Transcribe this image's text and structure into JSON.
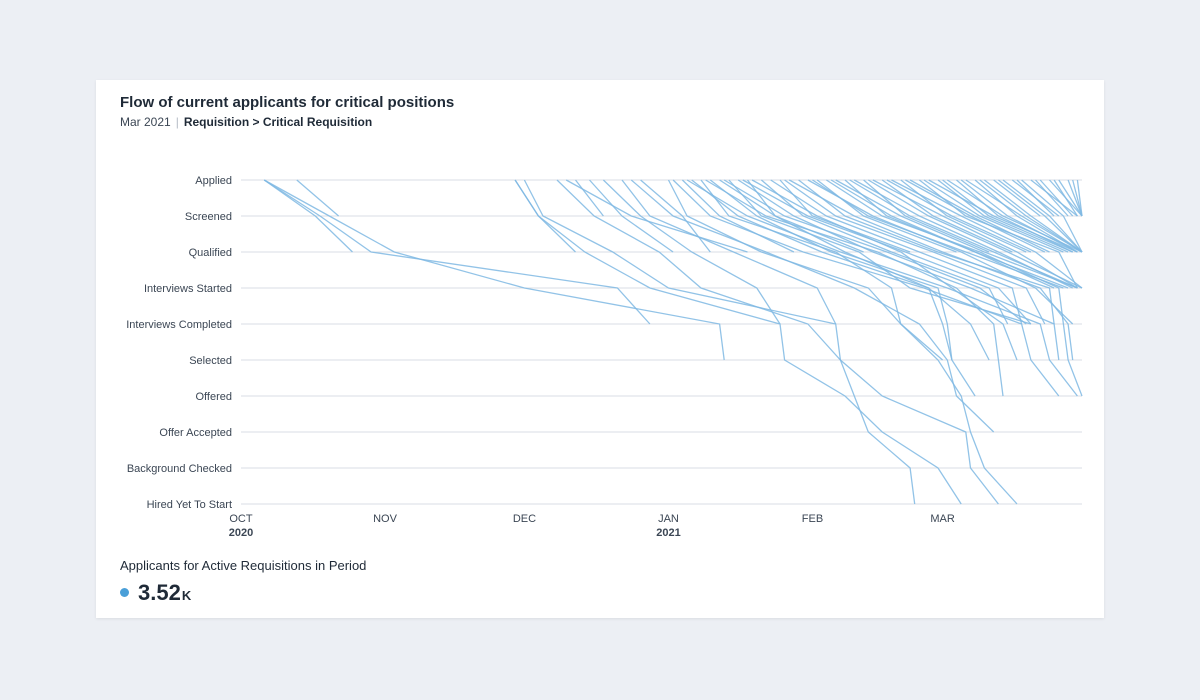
{
  "card": {
    "title": "Flow of current applicants for critical positions",
    "period": "Mar 2021",
    "breadcrumb": "Requisition > Critical Requisition"
  },
  "metric": {
    "label": "Applicants for Active Requisitions in Period",
    "value": "3.52",
    "suffix": "K",
    "dot_color": "#4a9fd8"
  },
  "colors": {
    "line": "#7fb9e3",
    "grid": "#d9dee5",
    "axis_text": "#3b4654"
  },
  "chart_data": {
    "type": "line",
    "title": "Flow of current applicants for critical positions",
    "xlabel": "",
    "ylabel": "",
    "x_type": "date",
    "xlim": [
      "2020-10-01",
      "2021-03-31"
    ],
    "x_ticks": [
      {
        "date": "2020-10-01",
        "label": "OCT",
        "sub": "2020"
      },
      {
        "date": "2020-11-01",
        "label": "NOV",
        "sub": ""
      },
      {
        "date": "2020-12-01",
        "label": "DEC",
        "sub": ""
      },
      {
        "date": "2021-01-01",
        "label": "JAN",
        "sub": "2021"
      },
      {
        "date": "2021-02-01",
        "label": "FEB",
        "sub": ""
      },
      {
        "date": "2021-03-01",
        "label": "MAR",
        "sub": ""
      }
    ],
    "stages": [
      "Applied",
      "Screened",
      "Qualified",
      "Interviews Started",
      "Interviews Completed",
      "Selected",
      "Offered",
      "Offer Accepted",
      "Background Checked",
      "Hired Yet To Start"
    ],
    "grid": true,
    "legend": "none",
    "series": [
      {
        "stages": [
          "2020-10-06",
          "2020-10-17",
          "2020-10-25"
        ]
      },
      {
        "stages": [
          "2020-10-06",
          "2020-10-18",
          "2020-10-29",
          "2020-12-21",
          "2020-12-28"
        ]
      },
      {
        "stages": [
          "2020-10-06",
          "2020-10-20",
          "2020-11-03",
          "2020-12-01",
          "2021-01-12",
          "2021-01-13"
        ]
      },
      {
        "stages": [
          "2020-10-13",
          "2020-10-22"
        ]
      },
      {
        "stages": [
          "2020-11-29",
          "2020-12-04",
          "2020-12-12"
        ]
      },
      {
        "stages": [
          "2020-11-29",
          "2020-12-04",
          "2020-12-14",
          "2020-12-28",
          "2021-01-25",
          "2021-01-26",
          "2021-02-08",
          "2021-02-16",
          "2021-02-28",
          "2021-03-05"
        ]
      },
      {
        "stages": [
          "2020-12-01",
          "2020-12-05",
          "2020-12-20",
          "2021-01-01",
          "2021-02-06",
          "2021-02-07",
          "2021-02-10",
          "2021-02-13",
          "2021-02-22",
          "2021-02-23"
        ]
      },
      {
        "stages": [
          "2020-12-08",
          "2020-12-16",
          "2020-12-30",
          "2021-01-08",
          "2021-01-31",
          "2021-02-07",
          "2021-02-16",
          "2021-03-06",
          "2021-03-07",
          "2021-03-13"
        ]
      },
      {
        "stages": [
          "2020-12-12",
          "2020-12-18"
        ]
      },
      {
        "stages": [
          "2020-12-15",
          "2020-12-22",
          "2021-01-02"
        ]
      },
      {
        "stages": [
          "2020-12-22",
          "2020-12-28",
          "2021-01-15",
          "2021-02-02",
          "2021-02-06"
        ]
      },
      {
        "stages": [
          "2020-12-26",
          "2021-01-04",
          "2021-01-10"
        ]
      },
      {
        "stages": [
          "2021-01-01",
          "2021-01-05",
          "2021-01-21",
          "2021-02-13",
          "2021-02-20",
          "2021-03-01"
        ]
      },
      {
        "stages": [
          "2021-01-04",
          "2021-01-12",
          "2021-01-28"
        ]
      },
      {
        "stages": [
          "2021-01-06",
          "2021-01-16",
          "2021-02-03",
          "2021-02-26",
          "2021-03-01",
          "2021-03-03"
        ]
      },
      {
        "stages": [
          "2021-01-08",
          "2021-01-14",
          "2021-02-06",
          "2021-02-18",
          "2021-02-20",
          "2021-02-28",
          "2021-03-05",
          "2021-03-07",
          "2021-03-10",
          "2021-03-17"
        ]
      },
      {
        "stages": [
          "2021-01-10",
          "2021-01-20",
          "2021-02-05",
          "2021-02-28",
          "2021-03-02",
          "2021-03-03",
          "2021-03-08"
        ]
      },
      {
        "stages": [
          "2021-01-12",
          "2021-01-24",
          "2021-02-08",
          "2021-02-26",
          "2021-03-07",
          "2021-03-11"
        ]
      },
      {
        "stages": [
          "2021-01-14",
          "2021-01-21",
          "2021-02-11",
          "2021-02-22",
          "2021-03-20"
        ]
      },
      {
        "stages": [
          "2021-01-16",
          "2021-01-28",
          "2021-02-14",
          "2021-03-07",
          "2021-03-25",
          "2021-03-26"
        ]
      },
      {
        "stages": [
          "2021-01-18",
          "2021-01-24",
          "2021-02-12"
        ]
      },
      {
        "stages": [
          "2021-01-19",
          "2021-02-02",
          "2021-02-20",
          "2021-03-03",
          "2021-03-14",
          "2021-03-17"
        ]
      },
      {
        "stages": [
          "2021-01-21",
          "2021-01-30",
          "2021-02-18",
          "2021-03-11",
          "2021-03-15"
        ]
      },
      {
        "stages": [
          "2021-01-23",
          "2021-02-04",
          "2021-02-24",
          "2021-03-16",
          "2021-03-18"
        ]
      },
      {
        "stages": [
          "2021-01-25",
          "2021-02-01",
          "2021-02-22"
        ]
      },
      {
        "stages": [
          "2021-01-27",
          "2021-02-10",
          "2021-03-01",
          "2021-03-22",
          "2021-03-28",
          "2021-03-29"
        ]
      },
      {
        "stages": [
          "2021-01-29",
          "2021-02-08",
          "2021-02-28",
          "2021-03-24",
          "2021-03-25"
        ]
      },
      {
        "stages": [
          "2021-01-31",
          "2021-02-14",
          "2021-03-05",
          "2021-03-21",
          "2021-03-29"
        ]
      },
      {
        "stages": [
          "2021-02-02",
          "2021-02-12",
          "2021-03-04"
        ]
      },
      {
        "stages": [
          "2021-02-04",
          "2021-02-16",
          "2021-03-09",
          "2021-03-26",
          "2021-03-27",
          "2021-03-28",
          "2021-03-31"
        ]
      },
      {
        "stages": [
          "2021-02-06",
          "2021-02-20",
          "2021-03-10",
          "2021-03-30"
        ]
      },
      {
        "stages": [
          "2021-02-08",
          "2021-02-17",
          "2021-03-08",
          "2021-03-25"
        ]
      },
      {
        "stages": [
          "2021-02-10",
          "2021-02-24",
          "2021-03-13",
          "2021-03-29"
        ]
      },
      {
        "stages": [
          "2021-02-12",
          "2021-02-21",
          "2021-03-11"
        ]
      },
      {
        "stages": [
          "2021-02-14",
          "2021-03-01",
          "2021-03-17",
          "2021-03-30"
        ]
      },
      {
        "stages": [
          "2021-02-16",
          "2021-02-27",
          "2021-03-16"
        ]
      },
      {
        "stages": [
          "2021-02-18",
          "2021-03-05",
          "2021-03-21",
          "2021-03-31"
        ]
      },
      {
        "stages": [
          "2021-02-20",
          "2021-03-02",
          "2021-03-19"
        ]
      },
      {
        "stages": [
          "2021-02-22",
          "2021-03-08",
          "2021-03-24"
        ]
      },
      {
        "stages": [
          "2021-02-24",
          "2021-03-06",
          "2021-03-26",
          "2021-03-30"
        ]
      },
      {
        "stages": [
          "2021-02-26",
          "2021-03-12",
          "2021-03-30"
        ]
      },
      {
        "stages": [
          "2021-02-28",
          "2021-03-10",
          "2021-03-28"
        ]
      },
      {
        "stages": [
          "2021-03-02",
          "2021-03-14",
          "2021-03-31"
        ]
      },
      {
        "stages": [
          "2021-03-04",
          "2021-03-13",
          "2021-03-29"
        ]
      },
      {
        "stages": [
          "2021-03-06",
          "2021-03-18",
          "2021-03-31"
        ]
      },
      {
        "stages": [
          "2021-03-08",
          "2021-03-17",
          "2021-03-30"
        ]
      },
      {
        "stages": [
          "2021-03-10",
          "2021-03-20",
          "2021-03-31"
        ]
      },
      {
        "stages": [
          "2021-03-12",
          "2021-03-22"
        ]
      },
      {
        "stages": [
          "2021-03-14",
          "2021-03-24",
          "2021-03-31"
        ]
      },
      {
        "stages": [
          "2021-03-16",
          "2021-03-26"
        ]
      },
      {
        "stages": [
          "2021-03-18",
          "2021-03-27",
          "2021-03-31"
        ]
      },
      {
        "stages": [
          "2021-03-20",
          "2021-03-30"
        ]
      },
      {
        "stages": [
          "2021-03-22",
          "2021-03-29"
        ]
      },
      {
        "stages": [
          "2021-03-24",
          "2021-03-31"
        ]
      },
      {
        "stages": [
          "2021-03-26",
          "2021-03-31"
        ]
      },
      {
        "stages": [
          "2021-03-28",
          "2021-03-31"
        ]
      },
      {
        "stages": [
          "2021-03-30",
          "2021-03-31"
        ]
      },
      {
        "stages": [
          "2020-12-18",
          "2020-12-26",
          "2021-01-06",
          "2021-01-20",
          "2021-01-25"
        ]
      },
      {
        "stages": [
          "2020-12-10",
          "2020-12-24",
          "2021-01-18"
        ]
      },
      {
        "stages": [
          "2020-12-24",
          "2021-01-02",
          "2021-01-22",
          "2021-02-10",
          "2021-02-24",
          "2021-03-02",
          "2021-03-04",
          "2021-03-12"
        ]
      },
      {
        "stages": [
          "2021-01-02",
          "2021-01-10",
          "2021-01-30",
          "2021-02-25",
          "2021-03-18",
          "2021-03-20",
          "2021-03-26"
        ]
      },
      {
        "stages": [
          "2021-01-05",
          "2021-01-18",
          "2021-02-07",
          "2021-03-02",
          "2021-03-22",
          "2021-03-24",
          "2021-03-30"
        ]
      },
      {
        "stages": [
          "2021-01-09",
          "2021-01-22",
          "2021-02-15",
          "2021-03-04",
          "2021-03-12",
          "2021-03-13",
          "2021-03-14"
        ]
      },
      {
        "stages": [
          "2021-01-13",
          "2021-01-26",
          "2021-02-17",
          "2021-03-09",
          "2021-03-19"
        ]
      },
      {
        "stages": [
          "2021-01-17",
          "2021-01-31",
          "2021-02-21",
          "2021-03-13",
          "2021-03-20"
        ]
      },
      {
        "stages": [
          "2021-01-26",
          "2021-02-06",
          "2021-02-27",
          "2021-03-19",
          "2021-03-23"
        ]
      },
      {
        "stages": [
          "2021-02-01",
          "2021-02-13",
          "2021-03-06",
          "2021-03-27"
        ]
      },
      {
        "stages": [
          "2021-02-05",
          "2021-02-18",
          "2021-03-08",
          "2021-03-28"
        ]
      },
      {
        "stages": [
          "2021-02-09",
          "2021-02-22",
          "2021-03-12",
          "2021-03-30"
        ]
      },
      {
        "stages": [
          "2021-02-13",
          "2021-02-26",
          "2021-03-15",
          "2021-03-31"
        ]
      },
      {
        "stages": [
          "2021-02-17",
          "2021-03-03",
          "2021-03-20"
        ]
      },
      {
        "stages": [
          "2021-02-21",
          "2021-03-07",
          "2021-03-23"
        ]
      },
      {
        "stages": [
          "2021-02-25",
          "2021-03-09",
          "2021-03-27"
        ]
      },
      {
        "stages": [
          "2021-03-01",
          "2021-03-11",
          "2021-03-29"
        ]
      },
      {
        "stages": [
          "2021-03-05",
          "2021-03-15",
          "2021-03-30"
        ]
      },
      {
        "stages": [
          "2021-03-09",
          "2021-03-19",
          "2021-03-31"
        ]
      },
      {
        "stages": [
          "2021-03-13",
          "2021-03-23",
          "2021-03-31"
        ]
      },
      {
        "stages": [
          "2021-03-17",
          "2021-03-25"
        ]
      },
      {
        "stages": [
          "2021-03-21",
          "2021-03-28"
        ]
      },
      {
        "stages": [
          "2021-03-25",
          "2021-03-30"
        ]
      },
      {
        "stages": [
          "2021-03-29",
          "2021-03-31"
        ]
      }
    ]
  }
}
